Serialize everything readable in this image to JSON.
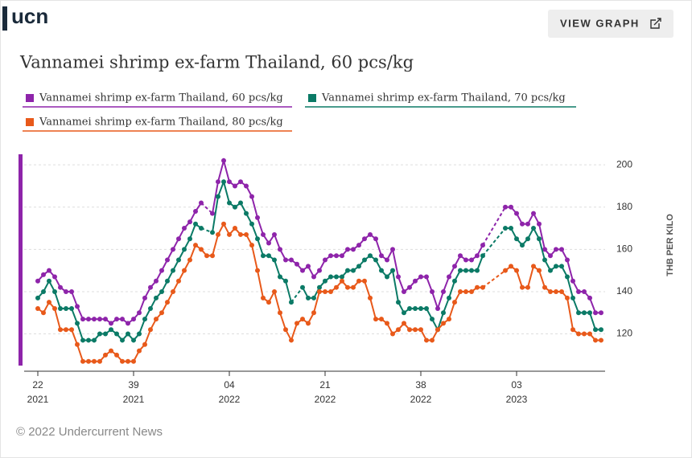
{
  "header": {
    "logo": "ucn",
    "button": "VIEW GRAPH"
  },
  "chart_data": {
    "type": "line",
    "title": "Vannamei shrimp ex-farm Thailand, 60 pcs/kg",
    "y_label": "THB PER KILO",
    "categories": [
      "22\n2021",
      null,
      null,
      null,
      null,
      null,
      null,
      null,
      null,
      null,
      null,
      null,
      null,
      null,
      null,
      null,
      null,
      "39\n2021",
      null,
      null,
      null,
      null,
      null,
      null,
      null,
      null,
      null,
      null,
      null,
      null,
      null,
      null,
      null,
      null,
      "04\n2022",
      null,
      null,
      null,
      null,
      null,
      null,
      null,
      null,
      null,
      null,
      null,
      null,
      null,
      null,
      null,
      null,
      "21\n2022",
      null,
      null,
      null,
      null,
      null,
      null,
      null,
      null,
      null,
      null,
      null,
      null,
      null,
      null,
      null,
      null,
      "38\n2022",
      null,
      null,
      null,
      null,
      null,
      null,
      null,
      null,
      null,
      null,
      null,
      null,
      null,
      null,
      null,
      null,
      "03\n2023",
      null,
      null,
      null,
      null,
      null,
      null,
      null,
      null,
      null,
      null,
      null,
      null,
      null,
      null,
      null
    ],
    "series": [
      {
        "name": "Vannamei shrimp ex-farm Thailand, 60 pcs/kg",
        "color": "#8e24aa",
        "values": [
          145,
          148,
          150,
          147,
          142,
          140,
          140,
          133,
          127,
          127,
          127,
          127,
          127,
          125,
          127,
          127,
          125,
          127,
          130,
          137,
          142,
          145,
          150,
          155,
          160,
          165,
          170,
          173,
          178,
          182,
          null,
          177,
          192,
          202,
          192,
          190,
          192,
          190,
          185,
          175,
          167,
          163,
          167,
          160,
          155,
          155,
          153,
          150,
          152,
          147,
          150,
          155,
          157,
          157,
          157,
          160,
          160,
          162,
          165,
          167,
          165,
          157,
          155,
          160,
          147,
          140,
          142,
          145,
          147,
          147,
          140,
          132,
          140,
          147,
          152,
          157,
          155,
          155,
          157,
          162,
          null,
          null,
          null,
          180,
          180,
          177,
          172,
          172,
          177,
          172,
          160,
          157,
          160,
          160,
          155,
          145,
          140,
          140,
          137,
          130,
          130
        ]
      },
      {
        "name": "Vannamei shrimp ex-farm Thailand, 70 pcs/kg",
        "color": "#0b7a66",
        "values": [
          137,
          140,
          145,
          140,
          132,
          132,
          132,
          125,
          117,
          117,
          117,
          120,
          120,
          122,
          120,
          117,
          120,
          117,
          120,
          127,
          132,
          137,
          140,
          145,
          150,
          155,
          160,
          165,
          172,
          170,
          null,
          168,
          185,
          192,
          182,
          180,
          182,
          177,
          172,
          165,
          157,
          157,
          155,
          147,
          145,
          135,
          null,
          142,
          137,
          137,
          142,
          145,
          147,
          147,
          147,
          150,
          150,
          152,
          155,
          157,
          155,
          150,
          147,
          150,
          135,
          130,
          132,
          132,
          132,
          132,
          127,
          122,
          130,
          137,
          145,
          150,
          150,
          150,
          150,
          157,
          null,
          null,
          null,
          170,
          170,
          165,
          162,
          165,
          170,
          165,
          155,
          150,
          152,
          152,
          147,
          137,
          130,
          130,
          130,
          122,
          122
        ]
      },
      {
        "name": "Vannamei shrimp ex-farm Thailand, 80 pcs/kg",
        "color": "#e8591a",
        "values": [
          132,
          130,
          135,
          132,
          122,
          122,
          122,
          115,
          107,
          107,
          107,
          107,
          110,
          112,
          110,
          107,
          107,
          107,
          112,
          115,
          122,
          127,
          130,
          135,
          140,
          145,
          150,
          155,
          162,
          160,
          157,
          157,
          167,
          172,
          167,
          170,
          167,
          167,
          162,
          150,
          137,
          135,
          140,
          130,
          122,
          117,
          125,
          127,
          125,
          130,
          140,
          140,
          140,
          142,
          145,
          142,
          142,
          145,
          145,
          137,
          127,
          127,
          125,
          120,
          122,
          125,
          122,
          122,
          122,
          117,
          117,
          122,
          125,
          127,
          135,
          140,
          140,
          140,
          142,
          142,
          null,
          null,
          null,
          150,
          152,
          150,
          142,
          142,
          152,
          150,
          142,
          140,
          140,
          140,
          137,
          122,
          120,
          120,
          120,
          117,
          117
        ]
      }
    ],
    "ylim": [
      105,
      205
    ],
    "yticks": [
      120,
      140,
      160,
      180,
      200
    ],
    "grid": true
  },
  "footer": "© 2022 Undercurrent News"
}
